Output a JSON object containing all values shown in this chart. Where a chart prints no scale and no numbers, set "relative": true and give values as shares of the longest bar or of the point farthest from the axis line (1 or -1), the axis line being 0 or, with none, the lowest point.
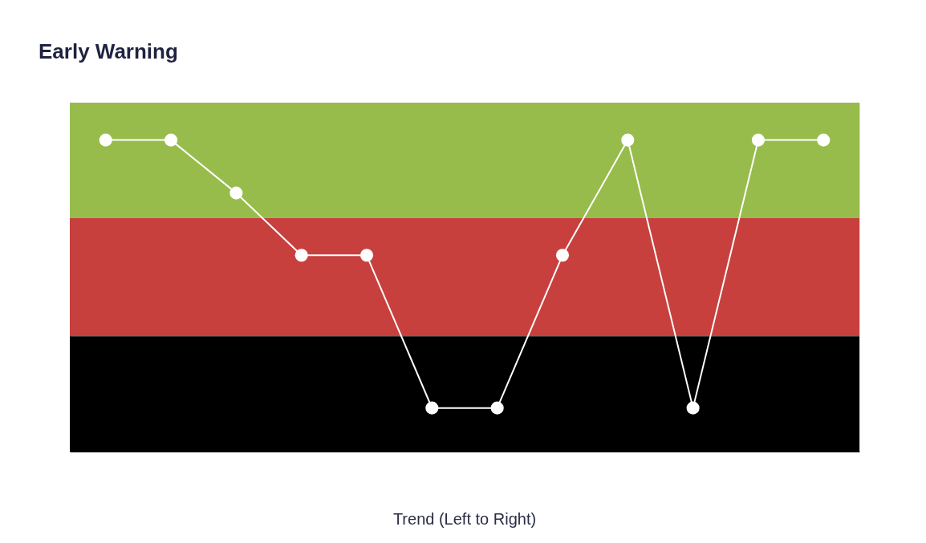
{
  "chart_data": {
    "type": "line",
    "title": "Early Warning",
    "relative": true,
    "marker": "circle",
    "line_style": "solid",
    "grid": false,
    "annotations": [
      "Trend (Left to Right)"
    ],
    "categories": [
      null,
      null,
      null,
      null,
      null,
      null,
      null,
      null,
      null,
      null,
      null,
      null
    ],
    "series": [
      {
        "color": "#ffffff",
        "values": [
          1,
          1,
          0.83,
          0.63,
          0.63,
          0.14,
          0.14,
          0.63,
          1,
          0.14,
          1,
          1
        ]
      }
    ],
    "bands": [
      {
        "axis": "y",
        "from": 0.75,
        "to": 1.12,
        "color": "#97bc4b"
      },
      {
        "axis": "y",
        "from": 0.37,
        "to": 0.75,
        "color": "#c8403e"
      },
      {
        "axis": "y",
        "from": 0,
        "to": 0.37,
        "color": "#000000"
      }
    ]
  }
}
